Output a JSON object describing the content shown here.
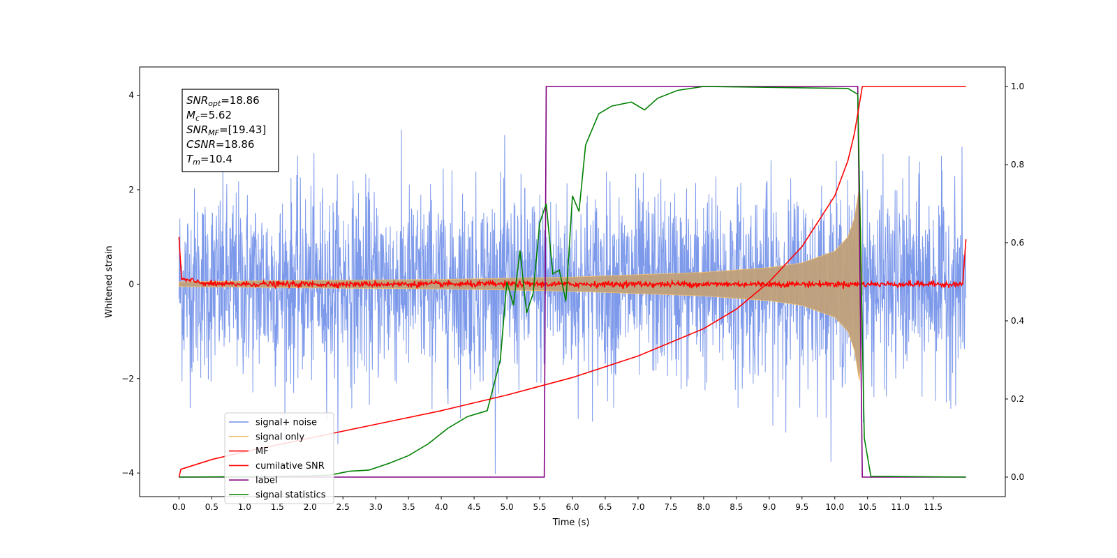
{
  "chart_data": {
    "type": "line",
    "title": "",
    "xlabel": "Time (s)",
    "ylabel": "Whitened strain",
    "xlim": [
      -0.6,
      12.6
    ],
    "ylim": [
      -4.5,
      4.6
    ],
    "y2lim": [
      -0.05,
      1.05
    ],
    "x_ticks": [
      "0.0",
      "0.5",
      "1.0",
      "1.5",
      "2.0",
      "2.5",
      "3.0",
      "3.5",
      "4.0",
      "4.5",
      "5.0",
      "5.5",
      "6.0",
      "6.5",
      "7.0",
      "7.5",
      "8.0",
      "8.5",
      "9.0",
      "9.5",
      "10.0",
      "10.5",
      "11.0",
      "11.5"
    ],
    "y_ticks": [
      "−4",
      "−2",
      "0",
      "2",
      "4"
    ],
    "y2_ticks": [
      "0.0",
      "0.2",
      "0.4",
      "0.6",
      "0.8",
      "1.0"
    ],
    "legend_position": "lower-left",
    "grid": false,
    "annotation": {
      "lines": [
        {
          "sym": "SNR",
          "sub": "opt",
          "val": "=18.86"
        },
        {
          "sym": "M",
          "sub": "c",
          "val": "=5.62"
        },
        {
          "sym": "SNR",
          "sub": "MF",
          "val": "=[19.43]"
        },
        {
          "sym": "CSNR",
          "sub": "",
          "val": "=18.86"
        },
        {
          "sym": "T",
          "sub": "m",
          "val": "=10.4"
        }
      ]
    },
    "series": [
      {
        "name": "signal+ noise",
        "color": "#6f8ee8",
        "axis": "left",
        "noise_std": 1.0,
        "points": [
          [
            0.0,
            0.0
          ],
          [
            12.0,
            0.0
          ]
        ]
      },
      {
        "name": "signal only",
        "color": "#f5c16c",
        "axis": "left",
        "envelope": [
          [
            0.0,
            0.05
          ],
          [
            2.0,
            0.08
          ],
          [
            4.0,
            0.1
          ],
          [
            6.0,
            0.15
          ],
          [
            8.0,
            0.25
          ],
          [
            9.0,
            0.35
          ],
          [
            9.5,
            0.45
          ],
          [
            10.0,
            0.7
          ],
          [
            10.2,
            1.0
          ],
          [
            10.3,
            1.4
          ],
          [
            10.38,
            2.1
          ],
          [
            10.42,
            0.0
          ]
        ]
      },
      {
        "name": "MF",
        "color": "#ff0000",
        "axis": "left",
        "points": [
          [
            0.0,
            1.0
          ],
          [
            0.04,
            0.1
          ],
          [
            0.5,
            0.0
          ],
          [
            11.95,
            0.0
          ],
          [
            12.0,
            0.95
          ]
        ]
      },
      {
        "name": "cumilative SNR",
        "color": "#ff0000",
        "axis": "right",
        "points": [
          [
            0.0,
            0.0
          ],
          [
            0.03,
            0.02
          ],
          [
            0.5,
            0.045
          ],
          [
            1.0,
            0.065
          ],
          [
            2.0,
            0.1
          ],
          [
            3.0,
            0.135
          ],
          [
            4.0,
            0.17
          ],
          [
            5.0,
            0.21
          ],
          [
            6.0,
            0.255
          ],
          [
            7.0,
            0.31
          ],
          [
            8.0,
            0.38
          ],
          [
            8.5,
            0.43
          ],
          [
            9.0,
            0.5
          ],
          [
            9.5,
            0.59
          ],
          [
            10.0,
            0.72
          ],
          [
            10.2,
            0.81
          ],
          [
            10.3,
            0.88
          ],
          [
            10.38,
            0.96
          ],
          [
            10.42,
            1.0
          ],
          [
            12.0,
            1.0
          ]
        ]
      },
      {
        "name": "label",
        "color": "#800080",
        "axis": "right",
        "points": [
          [
            0.0,
            0.0
          ],
          [
            5.57,
            0.0
          ],
          [
            5.6,
            1.0
          ],
          [
            10.35,
            1.0
          ],
          [
            10.42,
            0.0
          ],
          [
            12.0,
            0.0
          ]
        ]
      },
      {
        "name": "signal statistics",
        "color": "#008000",
        "axis": "right",
        "points": [
          [
            0.0,
            0.0
          ],
          [
            1.0,
            0.001
          ],
          [
            2.0,
            0.003
          ],
          [
            2.3,
            0.005
          ],
          [
            2.6,
            0.015
          ],
          [
            2.9,
            0.018
          ],
          [
            3.2,
            0.035
          ],
          [
            3.5,
            0.055
          ],
          [
            3.8,
            0.085
          ],
          [
            4.1,
            0.125
          ],
          [
            4.4,
            0.155
          ],
          [
            4.7,
            0.17
          ],
          [
            4.9,
            0.3
          ],
          [
            5.0,
            0.5
          ],
          [
            5.1,
            0.44
          ],
          [
            5.2,
            0.58
          ],
          [
            5.3,
            0.42
          ],
          [
            5.4,
            0.47
          ],
          [
            5.5,
            0.65
          ],
          [
            5.6,
            0.7
          ],
          [
            5.7,
            0.52
          ],
          [
            5.8,
            0.53
          ],
          [
            5.9,
            0.45
          ],
          [
            6.0,
            0.72
          ],
          [
            6.1,
            0.68
          ],
          [
            6.2,
            0.85
          ],
          [
            6.4,
            0.93
          ],
          [
            6.6,
            0.95
          ],
          [
            6.9,
            0.96
          ],
          [
            7.1,
            0.94
          ],
          [
            7.3,
            0.97
          ],
          [
            7.6,
            0.99
          ],
          [
            8.0,
            1.0
          ],
          [
            10.2,
            0.995
          ],
          [
            10.35,
            0.98
          ],
          [
            10.45,
            0.1
          ],
          [
            10.55,
            0.002
          ],
          [
            12.0,
            0.0
          ]
        ]
      }
    ]
  }
}
